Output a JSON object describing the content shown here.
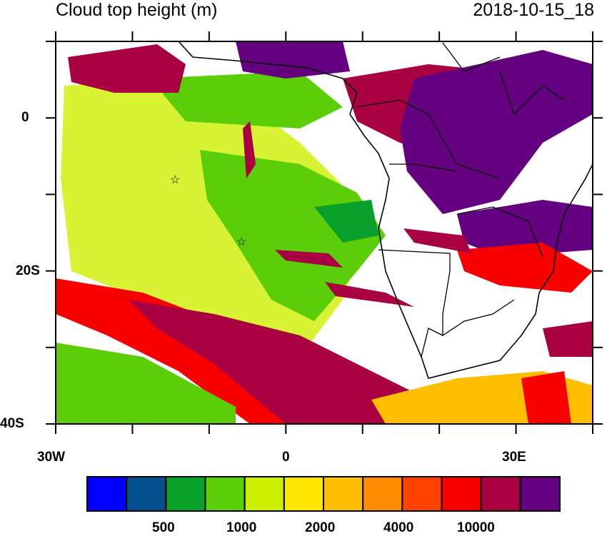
{
  "title": "Cloud top height (m)",
  "timestamp": "2018-10-15_18",
  "axes": {
    "x_labels": [
      "30W",
      "0",
      "30E"
    ],
    "y_labels": [
      "0",
      "20S",
      "40S"
    ],
    "lon_range": [
      -30,
      40
    ],
    "lat_range": [
      -40,
      10
    ]
  },
  "markers": [
    {
      "name": "star",
      "lon": -14.4,
      "lat": -7.9
    },
    {
      "name": "star",
      "lon": -5.7,
      "lat": -16
    }
  ],
  "colorbar": {
    "colors": [
      "#0000ff",
      "#04508e",
      "#08a02a",
      "#5ccd09",
      "#cdf000",
      "#ffe600",
      "#ffbe00",
      "#ff8c00",
      "#ff4200",
      "#f80000",
      "#a80040",
      "#640080"
    ],
    "labels": [
      "500",
      "1000",
      "2000",
      "4000",
      "10000"
    ]
  }
}
